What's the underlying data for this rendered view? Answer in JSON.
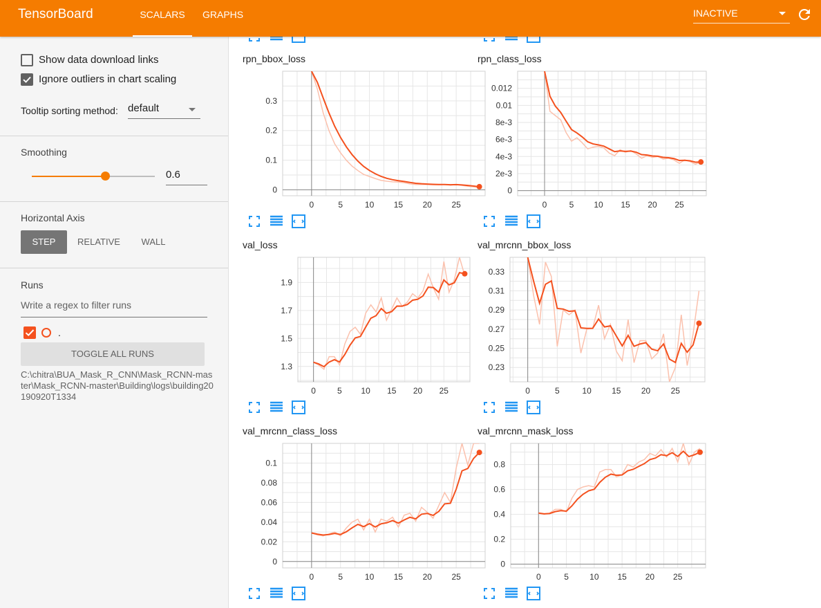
{
  "header": {
    "brand": "TensorBoard",
    "tabs": [
      {
        "label": "SCALARS",
        "active": true
      },
      {
        "label": "GRAPHS",
        "active": false
      }
    ],
    "status_select": "INACTIVE",
    "accent_color": "#f57c00"
  },
  "sidebar": {
    "show_download_links_label": "Show data download links",
    "show_download_links_checked": false,
    "ignore_outliers_label": "Ignore outliers in chart scaling",
    "ignore_outliers_checked": true,
    "tooltip_sorting_label": "Tooltip sorting method:",
    "tooltip_sorting_value": "default",
    "smoothing_label": "Smoothing",
    "smoothing_value": "0.6",
    "smoothing_fraction": 0.6,
    "horizontal_axis_label": "Horizontal Axis",
    "horizontal_axis_options": [
      "STEP",
      "RELATIVE",
      "WALL"
    ],
    "horizontal_axis_selected": "STEP",
    "runs_label": "Runs",
    "runs_filter_placeholder": "Write a regex to filter runs",
    "run_name": ".",
    "toggle_all_runs_label": "TOGGLE ALL RUNS",
    "logdir_path": "C:\\chitra\\BUA_Mask_R_CNN\\Mask_RCNN-master\\Mask_RCNN-master\\Building\\logs\\building20190920T1334",
    "run_color": "#f4511e"
  },
  "card_icons": [
    "fullscreen-icon",
    "data-table-icon",
    "fit-domain-icon"
  ],
  "chart_data": [
    {
      "type": "line",
      "title": "rpn_bbox_loss",
      "xlim": [
        -5,
        30
      ],
      "ylim": [
        -0.02,
        0.4
      ],
      "xticks": [
        0,
        5,
        10,
        15,
        20,
        25
      ],
      "yticks": [
        0,
        0.1,
        0.2,
        0.3
      ],
      "ytick_labels": [
        "0",
        "0.1",
        "0.2",
        "0.3"
      ],
      "series": [
        {
          "x": [
            0,
            1,
            2,
            3,
            4,
            5,
            6,
            7,
            8,
            9,
            10,
            11,
            12,
            13,
            14,
            15,
            16,
            17,
            18,
            19,
            20,
            21,
            22,
            23,
            24,
            25,
            26,
            27,
            28,
            29
          ],
          "values": [
            0.4,
            0.34,
            0.26,
            0.2,
            0.155,
            0.125,
            0.1,
            0.08,
            0.065,
            0.052,
            0.045,
            0.038,
            0.032,
            0.029,
            0.027,
            0.026,
            0.024,
            0.02,
            0.018,
            0.018,
            0.018,
            0.017,
            0.017,
            0.018,
            0.016,
            0.018,
            0.015,
            0.012,
            0.01,
            0.007
          ]
        }
      ]
    },
    {
      "type": "line",
      "title": "rpn_class_loss",
      "xlim": [
        -5,
        30
      ],
      "ylim": [
        -0.0006,
        0.014
      ],
      "xticks": [
        0,
        5,
        10,
        15,
        20,
        25
      ],
      "yticks": [
        0,
        0.002,
        0.004,
        0.006,
        0.008,
        0.01,
        0.012
      ],
      "ytick_labels": [
        "0",
        "2e-3",
        "4e-3",
        "6e-3",
        "8e-3",
        "0.01",
        "0.012"
      ],
      "series": [
        {
          "x": [
            0,
            1,
            2,
            3,
            4,
            5,
            6,
            7,
            8,
            9,
            10,
            11,
            12,
            13,
            14,
            15,
            16,
            17,
            18,
            19,
            20,
            21,
            22,
            23,
            24,
            25,
            26,
            27,
            28,
            29
          ],
          "values": [
            0.014,
            0.0093,
            0.0088,
            0.0083,
            0.0068,
            0.0058,
            0.0062,
            0.0056,
            0.0049,
            0.0051,
            0.0052,
            0.005,
            0.0044,
            0.0041,
            0.0048,
            0.0045,
            0.0047,
            0.0043,
            0.0038,
            0.0041,
            0.0039,
            0.004,
            0.0037,
            0.0038,
            0.0036,
            0.0032,
            0.0036,
            0.0034,
            0.0031,
            0.0034
          ]
        }
      ]
    },
    {
      "type": "line",
      "title": "val_loss",
      "xlim": [
        -3,
        30
      ],
      "ylim": [
        1.19,
        2.08
      ],
      "xticks": [
        0,
        5,
        10,
        15,
        20,
        25
      ],
      "yticks": [
        1.3,
        1.5,
        1.7,
        1.9
      ],
      "ytick_labels": [
        "1.3",
        "1.5",
        "1.7",
        "1.9"
      ],
      "series": [
        {
          "x": [
            0,
            1,
            2,
            3,
            4,
            5,
            6,
            7,
            8,
            9,
            10,
            11,
            12,
            13,
            14,
            15,
            16,
            17,
            18,
            19,
            20,
            21,
            22,
            23,
            24,
            25,
            26,
            27,
            28,
            29
          ],
          "values": [
            1.33,
            1.31,
            1.28,
            1.37,
            1.37,
            1.31,
            1.46,
            1.55,
            1.58,
            1.53,
            1.68,
            1.74,
            1.69,
            1.79,
            1.63,
            1.71,
            1.79,
            1.73,
            1.76,
            1.82,
            1.79,
            1.84,
            1.96,
            1.86,
            1.78,
            2.05,
            1.83,
            1.92,
            2.08,
            1.95
          ]
        }
      ]
    },
    {
      "type": "line",
      "title": "val_mrcnn_bbox_loss",
      "xlim": [
        -3,
        30
      ],
      "ylim": [
        0.215,
        0.345
      ],
      "xticks": [
        0,
        5,
        10,
        15,
        20,
        25
      ],
      "yticks": [
        0.23,
        0.25,
        0.27,
        0.29,
        0.31,
        0.33
      ],
      "ytick_labels": [
        "0.23",
        "0.25",
        "0.27",
        "0.29",
        "0.31",
        "0.33"
      ],
      "series": [
        {
          "x": [
            0,
            1,
            2,
            3,
            4,
            5,
            6,
            7,
            8,
            9,
            10,
            11,
            12,
            13,
            14,
            15,
            16,
            17,
            18,
            19,
            20,
            21,
            22,
            23,
            24,
            25,
            26,
            27,
            28,
            29
          ],
          "values": [
            0.345,
            0.305,
            0.275,
            0.34,
            0.325,
            0.252,
            0.29,
            0.285,
            0.29,
            0.245,
            0.27,
            0.271,
            0.295,
            0.26,
            0.275,
            0.247,
            0.237,
            0.28,
            0.235,
            0.258,
            0.258,
            0.239,
            0.245,
            0.265,
            0.215,
            0.23,
            0.285,
            0.232,
            0.265,
            0.31
          ]
        }
      ]
    },
    {
      "type": "line",
      "title": "val_mrcnn_class_loss",
      "xlim": [
        -5,
        30
      ],
      "ylim": [
        -0.0065,
        0.12
      ],
      "xticks": [
        0,
        5,
        10,
        15,
        20,
        25
      ],
      "yticks": [
        0,
        0.02,
        0.04,
        0.06,
        0.08,
        0.1
      ],
      "ytick_labels": [
        "0",
        "0.02",
        "0.04",
        "0.06",
        "0.08",
        "0.1"
      ],
      "series": [
        {
          "x": [
            0,
            1,
            2,
            3,
            4,
            5,
            6,
            7,
            8,
            9,
            10,
            11,
            12,
            13,
            14,
            15,
            16,
            17,
            18,
            19,
            20,
            21,
            22,
            23,
            24,
            25,
            26,
            27,
            28,
            29
          ],
          "values": [
            0.029,
            0.027,
            0.026,
            0.028,
            0.03,
            0.026,
            0.034,
            0.04,
            0.043,
            0.032,
            0.043,
            0.03,
            0.043,
            0.041,
            0.045,
            0.035,
            0.047,
            0.049,
            0.041,
            0.055,
            0.05,
            0.044,
            0.057,
            0.07,
            0.06,
            0.095,
            0.12,
            0.098,
            0.12,
            0.12
          ]
        }
      ]
    },
    {
      "type": "line",
      "title": "val_mrcnn_mask_loss",
      "xlim": [
        -5,
        30
      ],
      "ylim": [
        -0.03,
        0.97
      ],
      "xticks": [
        0,
        5,
        10,
        15,
        20,
        25
      ],
      "yticks": [
        0,
        0.2,
        0.4,
        0.6,
        0.8
      ],
      "ytick_labels": [
        "0",
        "0.2",
        "0.4",
        "0.6",
        "0.8"
      ],
      "series": [
        {
          "x": [
            0,
            1,
            2,
            3,
            4,
            5,
            6,
            7,
            8,
            9,
            10,
            11,
            12,
            13,
            14,
            15,
            16,
            17,
            18,
            19,
            20,
            21,
            22,
            23,
            24,
            25,
            26,
            27,
            28,
            29
          ],
          "values": [
            0.41,
            0.4,
            0.41,
            0.44,
            0.44,
            0.42,
            0.53,
            0.6,
            0.62,
            0.63,
            0.62,
            0.74,
            0.76,
            0.76,
            0.7,
            0.72,
            0.8,
            0.78,
            0.82,
            0.84,
            0.89,
            0.87,
            0.92,
            0.86,
            0.93,
            0.82,
            0.97,
            0.8,
            0.9,
            0.93
          ]
        }
      ]
    }
  ]
}
